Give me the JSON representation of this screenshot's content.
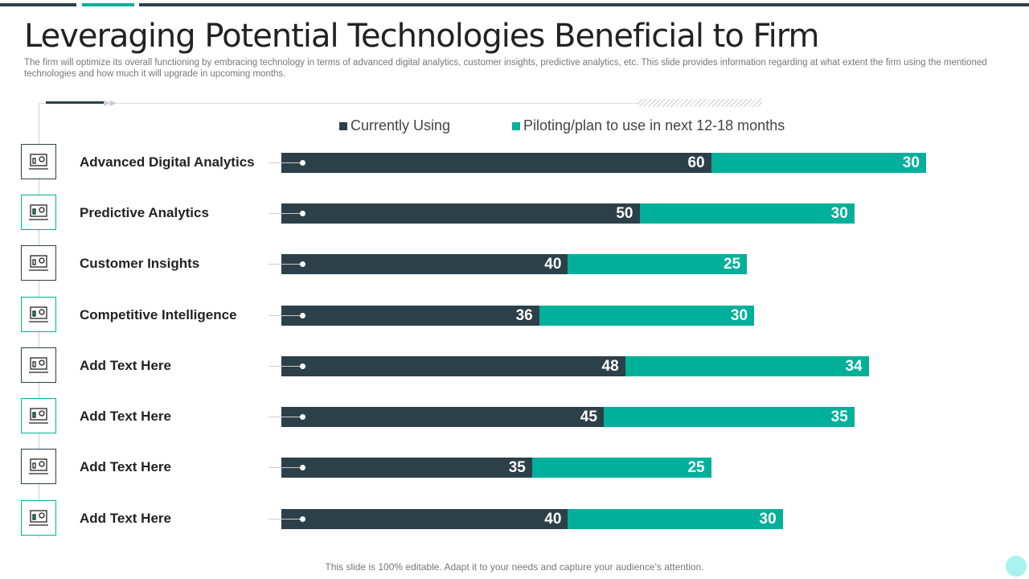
{
  "title": "Leveraging Potential Technologies Beneficial to Firm",
  "subtitle": "The firm will optimize its overall functioning by embracing technology in terms of advanced digital analytics, customer insights, predictive analytics, etc. This slide provides information regarding at what extent the firm using the mentioned technologies and how much it will upgrade in upcoming months.",
  "footer": "This slide is 100% editable. Adapt it to your needs and capture your audience's attention.",
  "colors": {
    "dark": "#2c4049",
    "teal": "#00b09b"
  },
  "chart_data": {
    "type": "bar",
    "orientation": "horizontal",
    "stacked": true,
    "categories": [
      "Advanced Digital Analytics",
      "Predictive Analytics",
      "Customer Insights",
      "Competitive Intelligence",
      "Add Text Here",
      "Add Text Here",
      "Add Text Here",
      "Add Text Here"
    ],
    "icons": [
      "laptop-dashboard-icon",
      "analytics-magnifier-icon",
      "customer-insights-icon",
      "presentation-board-icon",
      "dollar-exchange-icon",
      "pie-chart-icon",
      "laptop-chart-icon",
      "browser-window-icon"
    ],
    "series": [
      {
        "name": "Currently Using",
        "values": [
          60,
          50,
          40,
          36,
          48,
          45,
          35,
          40
        ]
      },
      {
        "name": "Piloting/plan to use in next 12-18 months",
        "values": [
          30,
          30,
          25,
          30,
          34,
          35,
          25,
          30
        ]
      }
    ],
    "legend": "top"
  }
}
